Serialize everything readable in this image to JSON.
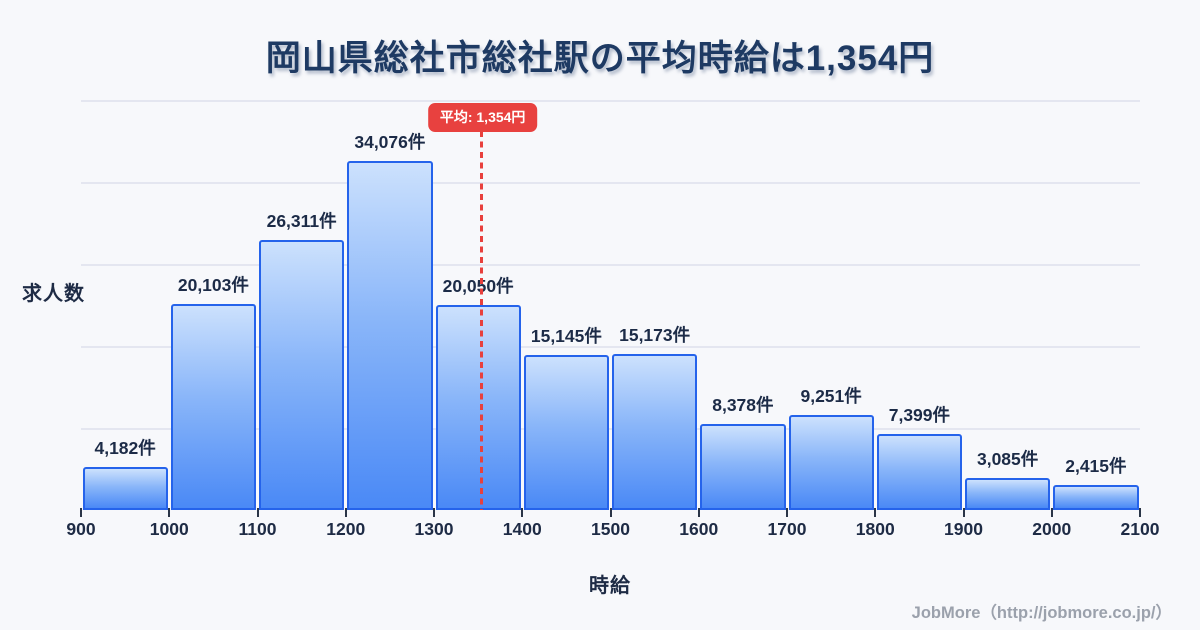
{
  "title": "岡山県総社市総社駅の平均時給は1,354円",
  "chart_data": {
    "type": "bar",
    "subtype": "histogram",
    "title": "岡山県総社市総社駅の平均時給は1,354円",
    "xlabel": "時給",
    "ylabel": "求人数",
    "bin_edges": [
      900,
      1000,
      1100,
      1200,
      1300,
      1400,
      1500,
      1600,
      1700,
      1800,
      1900,
      2000,
      2100
    ],
    "x_tick_labels": [
      "900",
      "1000",
      "1100",
      "1200",
      "1300",
      "1400",
      "1500",
      "1600",
      "1700",
      "1800",
      "1900",
      "2000",
      "2100"
    ],
    "values": [
      4182,
      20103,
      26311,
      34076,
      20050,
      15145,
      15173,
      8378,
      9251,
      7399,
      3085,
      2415
    ],
    "bar_labels": [
      "4,182件",
      "20,103件",
      "26,311件",
      "34,076件",
      "20,050件",
      "15,145件",
      "15,173件",
      "8,378件",
      "9,251件",
      "7,399件",
      "3,085件",
      "2,415件"
    ],
    "unit": "件",
    "ylim": [
      0,
      40000
    ],
    "gridlines_y": [
      8000,
      16000,
      24000,
      32000,
      40000
    ],
    "grid": "horizontal-only, no y tick labels",
    "legend": "none",
    "mean": {
      "value": 1354,
      "label": "平均: 1,354円"
    },
    "colors": {
      "background": "#f7f8fb",
      "bar_fill_top": "#cce1fd",
      "bar_fill_bottom": "#4a89f6",
      "bar_border": "#2563eb",
      "gridline": "#e4e6f0",
      "mean_accent": "#e8413f",
      "text_navy": "#1e2b45",
      "title_navy": "#1e3a63",
      "footer_gray": "#9ba1ac"
    }
  },
  "footer": {
    "credit": "JobMore（http://jobmore.co.jp/）"
  }
}
